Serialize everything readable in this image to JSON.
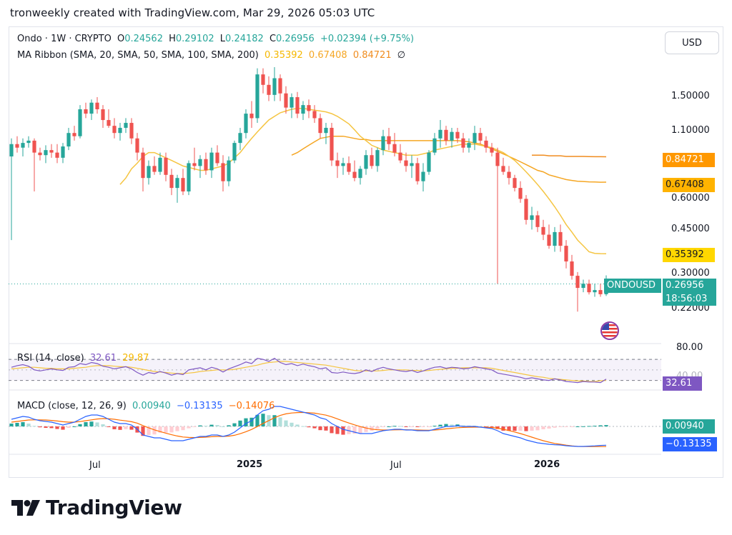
{
  "header": {
    "text": "tronweekly created with TradingView.com, Mar 29, 2026 05:03 UTC"
  },
  "legend": {
    "symbol": "Ondo · 1W · CRYPTO",
    "o_label": "O",
    "o_val": "0.24562",
    "h_label": "H",
    "h_val": "0.29102",
    "l_label": "L",
    "l_val": "0.24182",
    "c_label": "C",
    "c_val": "0.26956",
    "change": "+0.02394 (+9.75%)",
    "ma_title": "MA Ribbon (SMA, 20, SMA, 50, SMA, 100, SMA, 200)",
    "ma_v1": "0.35392",
    "ma_v2": "0.67408",
    "ma_v3": "0.84721",
    "ma_v4": "∅",
    "rsi_title": "RSI (14, close)",
    "rsi_v1": "32.61",
    "rsi_v2": "29.87",
    "macd_title": "MACD (close, 12, 26, 9)",
    "macd_v1": "0.00940",
    "macd_v2": "−0.13135",
    "macd_v3": "−0.14076"
  },
  "currency_button": "USD",
  "price_axis": [
    "1.50000",
    "1.10000",
    "0.60000",
    "0.45000",
    "0.30000",
    "0.22000"
  ],
  "price_tags": {
    "ma100": "0.84721",
    "ma50": "0.67408",
    "ma20": "0.35392",
    "symbol_tag": "ONDOUSD",
    "last": "0.26956",
    "countdown": "18:56:03"
  },
  "rsi_axis": {
    "top": "80.00",
    "hidden": "40.00",
    "tag": "32.61"
  },
  "macd_tags": {
    "hist": "0.00940",
    "macd": "−0.13135"
  },
  "time_axis": [
    "Jul",
    "2025",
    "Jul",
    "2026"
  ],
  "brand": {
    "name": "TradingView",
    "logo": "tradingview-logo-icon"
  },
  "colors": {
    "up": "#26a69a",
    "down": "#ef5350",
    "ma20": "#f5c542",
    "ma50": "#f5a623",
    "ma100": "#f08c1e",
    "rsi": "#7e57c2",
    "macd": "#2962ff",
    "signal": "#ff6d00",
    "rsi_tag": "#7e57c2",
    "ma_tag_yellow": "#ffd700",
    "ma_tag_orange": "#ff9800"
  },
  "chart_data": {
    "type": "candlestick",
    "interval": "1W",
    "y_scale": "log",
    "candles_ohlc": [
      [
        0.85,
        1.0,
        0.4,
        0.95
      ],
      [
        0.95,
        1.02,
        0.88,
        0.92
      ],
      [
        0.92,
        1.0,
        0.85,
        0.96
      ],
      [
        0.96,
        1.02,
        0.92,
        0.98
      ],
      [
        0.98,
        1.0,
        0.62,
        0.88
      ],
      [
        0.88,
        0.92,
        0.82,
        0.86
      ],
      [
        0.86,
        0.94,
        0.8,
        0.9
      ],
      [
        0.9,
        0.95,
        0.84,
        0.88
      ],
      [
        0.88,
        0.95,
        0.8,
        0.84
      ],
      [
        0.84,
        0.96,
        0.8,
        0.93
      ],
      [
        0.93,
        1.1,
        0.9,
        1.05
      ],
      [
        1.05,
        1.12,
        0.98,
        1.02
      ],
      [
        1.02,
        1.35,
        1.0,
        1.3
      ],
      [
        1.3,
        1.38,
        1.2,
        1.25
      ],
      [
        1.25,
        1.42,
        1.18,
        1.38
      ],
      [
        1.38,
        1.45,
        1.25,
        1.3
      ],
      [
        1.3,
        1.35,
        1.1,
        1.18
      ],
      [
        1.18,
        1.3,
        1.1,
        1.12
      ],
      [
        1.12,
        1.2,
        1.0,
        1.05
      ],
      [
        1.05,
        1.15,
        0.98,
        1.1
      ],
      [
        1.1,
        1.2,
        1.05,
        1.15
      ],
      [
        1.15,
        1.2,
        0.95,
        1.0
      ],
      [
        1.0,
        1.05,
        0.82,
        0.88
      ],
      [
        0.88,
        0.92,
        0.62,
        0.7
      ],
      [
        0.7,
        0.82,
        0.66,
        0.78
      ],
      [
        0.78,
        0.85,
        0.72,
        0.74
      ],
      [
        0.74,
        0.88,
        0.72,
        0.84
      ],
      [
        0.84,
        0.88,
        0.68,
        0.72
      ],
      [
        0.72,
        0.76,
        0.6,
        0.64
      ],
      [
        0.64,
        0.72,
        0.56,
        0.7
      ],
      [
        0.7,
        0.76,
        0.6,
        0.62
      ],
      [
        0.62,
        0.82,
        0.6,
        0.8
      ],
      [
        0.8,
        0.92,
        0.75,
        0.78
      ],
      [
        0.78,
        0.86,
        0.7,
        0.83
      ],
      [
        0.83,
        0.88,
        0.72,
        0.75
      ],
      [
        0.75,
        0.92,
        0.7,
        0.88
      ],
      [
        0.88,
        0.94,
        0.78,
        0.8
      ],
      [
        0.8,
        0.86,
        0.62,
        0.68
      ],
      [
        0.68,
        0.85,
        0.65,
        0.82
      ],
      [
        0.82,
        0.98,
        0.8,
        0.96
      ],
      [
        0.96,
        1.1,
        0.9,
        1.05
      ],
      [
        1.05,
        1.3,
        1.0,
        1.25
      ],
      [
        1.25,
        1.4,
        1.1,
        1.2
      ],
      [
        1.2,
        1.88,
        1.15,
        1.78
      ],
      [
        1.78,
        1.88,
        1.5,
        1.62
      ],
      [
        1.62,
        1.75,
        1.4,
        1.48
      ],
      [
        1.48,
        1.9,
        1.4,
        1.72
      ],
      [
        1.72,
        1.78,
        1.4,
        1.5
      ],
      [
        1.5,
        1.6,
        1.25,
        1.32
      ],
      [
        1.32,
        1.5,
        1.2,
        1.45
      ],
      [
        1.45,
        1.52,
        1.2,
        1.25
      ],
      [
        1.25,
        1.4,
        1.18,
        1.35
      ],
      [
        1.35,
        1.42,
        1.2,
        1.28
      ],
      [
        1.28,
        1.35,
        1.15,
        1.2
      ],
      [
        1.2,
        1.25,
        1.0,
        1.05
      ],
      [
        1.05,
        1.15,
        0.95,
        1.1
      ],
      [
        1.1,
        1.15,
        0.78,
        0.82
      ],
      [
        0.82,
        0.88,
        0.7,
        0.78
      ],
      [
        0.78,
        0.84,
        0.72,
        0.8
      ],
      [
        0.8,
        0.85,
        0.72,
        0.74
      ],
      [
        0.74,
        0.82,
        0.68,
        0.7
      ],
      [
        0.7,
        0.78,
        0.66,
        0.76
      ],
      [
        0.76,
        0.9,
        0.72,
        0.86
      ],
      [
        0.86,
        0.92,
        0.76,
        0.78
      ],
      [
        0.78,
        0.92,
        0.74,
        0.9
      ],
      [
        0.9,
        1.08,
        0.86,
        1.02
      ],
      [
        1.02,
        1.1,
        0.9,
        0.95
      ],
      [
        0.95,
        1.05,
        0.85,
        0.88
      ],
      [
        0.88,
        0.95,
        0.8,
        0.82
      ],
      [
        0.82,
        0.88,
        0.74,
        0.78
      ],
      [
        0.78,
        0.86,
        0.7,
        0.8
      ],
      [
        0.8,
        0.84,
        0.66,
        0.68
      ],
      [
        0.68,
        0.8,
        0.62,
        0.74
      ],
      [
        0.74,
        0.9,
        0.72,
        0.88
      ],
      [
        0.88,
        1.05,
        0.86,
        1.0
      ],
      [
        1.0,
        1.18,
        0.92,
        1.08
      ],
      [
        1.08,
        1.12,
        0.94,
        0.98
      ],
      [
        0.98,
        1.1,
        0.92,
        1.06
      ],
      [
        1.06,
        1.1,
        0.96,
        1.0
      ],
      [
        1.0,
        1.05,
        0.88,
        0.92
      ],
      [
        0.92,
        1.0,
        0.88,
        0.96
      ],
      [
        0.96,
        1.12,
        0.9,
        1.05
      ],
      [
        1.05,
        1.1,
        0.95,
        0.98
      ],
      [
        0.98,
        1.02,
        0.88,
        0.92
      ],
      [
        0.92,
        0.96,
        0.85,
        0.88
      ],
      [
        0.88,
        0.92,
        0.27,
        0.78
      ],
      [
        0.78,
        0.84,
        0.72,
        0.74
      ],
      [
        0.74,
        0.78,
        0.66,
        0.7
      ],
      [
        0.7,
        0.72,
        0.62,
        0.64
      ],
      [
        0.64,
        0.68,
        0.56,
        0.58
      ],
      [
        0.58,
        0.6,
        0.46,
        0.48
      ],
      [
        0.48,
        0.54,
        0.44,
        0.5
      ],
      [
        0.5,
        0.52,
        0.43,
        0.45
      ],
      [
        0.45,
        0.48,
        0.4,
        0.42
      ],
      [
        0.42,
        0.46,
        0.37,
        0.38
      ],
      [
        0.38,
        0.45,
        0.36,
        0.43
      ],
      [
        0.43,
        0.46,
        0.36,
        0.38
      ],
      [
        0.38,
        0.4,
        0.31,
        0.33
      ],
      [
        0.33,
        0.35,
        0.28,
        0.29
      ],
      [
        0.29,
        0.3,
        0.21,
        0.26
      ],
      [
        0.26,
        0.28,
        0.25,
        0.27
      ],
      [
        0.27,
        0.28,
        0.245,
        0.25
      ],
      [
        0.25,
        0.27,
        0.24,
        0.255
      ],
      [
        0.255,
        0.27,
        0.24,
        0.2456
      ],
      [
        0.24562,
        0.29102,
        0.24182,
        0.26956
      ]
    ],
    "ma_20": [
      null,
      null,
      null,
      null,
      null,
      null,
      null,
      null,
      null,
      null,
      null,
      null,
      null,
      null,
      null,
      null,
      null,
      null,
      null,
      0.66,
      0.7,
      0.76,
      0.8,
      0.85,
      0.88,
      0.88,
      0.86,
      0.84,
      0.82,
      0.8,
      0.78,
      0.77,
      0.76,
      0.75,
      0.75,
      0.76,
      0.77,
      0.78,
      0.8,
      0.84,
      0.88,
      0.94,
      1.0,
      1.06,
      1.12,
      1.18,
      1.22,
      1.26,
      1.28,
      1.3,
      1.31,
      1.31,
      1.3,
      1.29,
      1.28,
      1.27,
      1.25,
      1.22,
      1.18,
      1.14,
      1.08,
      1.02,
      0.98,
      0.94,
      0.92,
      0.9,
      0.89,
      0.88,
      0.87,
      0.86,
      0.86,
      0.86,
      0.87,
      0.88,
      0.9,
      0.91,
      0.92,
      0.93,
      0.94,
      0.95,
      0.95,
      0.95,
      0.94,
      0.93,
      0.92,
      0.9,
      0.88,
      0.85,
      0.82,
      0.78,
      0.74,
      0.7,
      0.66,
      0.62,
      0.58,
      0.54,
      0.5,
      0.46,
      0.43,
      0.4,
      0.38,
      0.36,
      0.355,
      0.354,
      0.3539
    ],
    "ma_50": [
      null,
      null,
      null,
      null,
      null,
      null,
      null,
      null,
      null,
      null,
      null,
      null,
      null,
      null,
      null,
      null,
      null,
      null,
      null,
      null,
      null,
      null,
      null,
      null,
      null,
      null,
      null,
      null,
      null,
      null,
      null,
      null,
      null,
      null,
      null,
      null,
      null,
      null,
      null,
      null,
      null,
      null,
      null,
      null,
      null,
      null,
      null,
      null,
      null,
      0.86,
      0.88,
      0.91,
      0.94,
      0.97,
      1.0,
      1.01,
      1.02,
      1.02,
      1.02,
      1.01,
      1.0,
      0.99,
      0.99,
      0.98,
      0.98,
      0.98,
      0.98,
      0.98,
      0.98,
      0.98,
      0.98,
      0.98,
      0.98,
      0.98,
      0.98,
      0.98,
      0.98,
      0.98,
      0.98,
      0.975,
      0.97,
      0.96,
      0.95,
      0.93,
      0.91,
      0.89,
      0.87,
      0.85,
      0.83,
      0.81,
      0.79,
      0.77,
      0.75,
      0.74,
      0.72,
      0.71,
      0.7,
      0.69,
      0.685,
      0.68,
      0.678,
      0.676,
      0.675,
      0.674,
      0.67408
    ],
    "ma_100": [
      null,
      null,
      null,
      null,
      null,
      null,
      null,
      null,
      null,
      null,
      null,
      null,
      null,
      null,
      null,
      null,
      null,
      null,
      null,
      null,
      null,
      null,
      null,
      null,
      null,
      null,
      null,
      null,
      null,
      null,
      null,
      null,
      null,
      null,
      null,
      null,
      null,
      null,
      null,
      null,
      null,
      null,
      null,
      null,
      null,
      null,
      null,
      null,
      null,
      null,
      null,
      null,
      null,
      null,
      null,
      null,
      null,
      null,
      null,
      null,
      null,
      null,
      null,
      null,
      null,
      null,
      null,
      null,
      null,
      null,
      null,
      null,
      null,
      null,
      null,
      null,
      null,
      null,
      null,
      null,
      null,
      null,
      null,
      null,
      null,
      null,
      null,
      null,
      null,
      null,
      null,
      0.86,
      0.86,
      0.86,
      0.855,
      0.855,
      0.855,
      0.85,
      0.85,
      0.85,
      0.85,
      0.849,
      0.848,
      0.848,
      0.8472
    ],
    "rsi": [
      55,
      58,
      60,
      57,
      50,
      48,
      50,
      52,
      50,
      49,
      55,
      56,
      62,
      60,
      64,
      62,
      57,
      55,
      52,
      54,
      56,
      52,
      45,
      40,
      45,
      43,
      47,
      44,
      40,
      43,
      41,
      50,
      52,
      54,
      50,
      55,
      52,
      46,
      52,
      56,
      60,
      65,
      62,
      72,
      70,
      66,
      72,
      64,
      60,
      62,
      58,
      61,
      58,
      56,
      52,
      54,
      45,
      44,
      46,
      44,
      43,
      45,
      50,
      47,
      52,
      55,
      52,
      50,
      48,
      47,
      49,
      45,
      48,
      52,
      55,
      56,
      53,
      55,
      54,
      52,
      53,
      56,
      54,
      52,
      50,
      44,
      42,
      40,
      38,
      36,
      33,
      35,
      33,
      31,
      30,
      33,
      31,
      28,
      27,
      26,
      28,
      27,
      27,
      26,
      32.61
    ],
    "rsi_signal": [
      52,
      53,
      54,
      55,
      55,
      54,
      53,
      53,
      52,
      52,
      52,
      53,
      54,
      55,
      57,
      58,
      58,
      58,
      57,
      56,
      56,
      55,
      53,
      51,
      49,
      47,
      46,
      45,
      44,
      43,
      43,
      44,
      45,
      47,
      48,
      49,
      50,
      50,
      50,
      51,
      53,
      55,
      57,
      59,
      62,
      64,
      65,
      66,
      66,
      65,
      64,
      63,
      62,
      61,
      60,
      59,
      57,
      55,
      53,
      51,
      49,
      48,
      48,
      48,
      48,
      49,
      50,
      50,
      50,
      50,
      49,
      49,
      48,
      49,
      50,
      51,
      52,
      53,
      53,
      54,
      54,
      54,
      54,
      54,
      53,
      51,
      49,
      47,
      45,
      43,
      41,
      39,
      37,
      36,
      34,
      33,
      32,
      31,
      30,
      29,
      29,
      28,
      28,
      29.5,
      29.87
    ],
    "macd": [
      0.05,
      0.06,
      0.07,
      0.065,
      0.05,
      0.04,
      0.035,
      0.03,
      0.02,
      0.01,
      0.02,
      0.03,
      0.05,
      0.07,
      0.08,
      0.08,
      0.07,
      0.05,
      0.03,
      0.02,
      0.02,
      0.01,
      -0.02,
      -0.06,
      -0.07,
      -0.08,
      -0.08,
      -0.09,
      -0.1,
      -0.1,
      -0.1,
      -0.09,
      -0.08,
      -0.07,
      -0.07,
      -0.06,
      -0.06,
      -0.07,
      -0.06,
      -0.04,
      -0.01,
      0.02,
      0.04,
      0.08,
      0.11,
      0.12,
      0.14,
      0.14,
      0.13,
      0.12,
      0.11,
      0.1,
      0.09,
      0.08,
      0.06,
      0.05,
      0.02,
      0.0,
      -0.02,
      -0.03,
      -0.04,
      -0.05,
      -0.05,
      -0.05,
      -0.04,
      -0.03,
      -0.025,
      -0.02,
      -0.02,
      -0.025,
      -0.025,
      -0.03,
      -0.03,
      -0.03,
      -0.02,
      -0.01,
      0.0,
      0.0,
      0.005,
      0.0,
      0.0,
      0.0,
      -0.005,
      -0.01,
      -0.015,
      -0.03,
      -0.05,
      -0.06,
      -0.07,
      -0.08,
      -0.095,
      -0.105,
      -0.115,
      -0.12,
      -0.125,
      -0.128,
      -0.13,
      -0.135,
      -0.138,
      -0.14,
      -0.14,
      -0.138,
      -0.136,
      -0.133,
      -0.13135
    ],
    "macd_signal": [
      0.03,
      0.035,
      0.04,
      0.045,
      0.046,
      0.046,
      0.045,
      0.042,
      0.038,
      0.033,
      0.03,
      0.03,
      0.034,
      0.04,
      0.046,
      0.052,
      0.055,
      0.054,
      0.05,
      0.044,
      0.039,
      0.033,
      0.023,
      0.006,
      -0.01,
      -0.024,
      -0.036,
      -0.047,
      -0.058,
      -0.067,
      -0.074,
      -0.077,
      -0.078,
      -0.077,
      -0.075,
      -0.072,
      -0.07,
      -0.07,
      -0.068,
      -0.062,
      -0.051,
      -0.037,
      -0.021,
      -0.001,
      0.021,
      0.041,
      0.061,
      0.077,
      0.088,
      0.094,
      0.097,
      0.098,
      0.096,
      0.093,
      0.086,
      0.079,
      0.067,
      0.053,
      0.038,
      0.024,
      0.011,
      -0.001,
      -0.011,
      -0.019,
      -0.023,
      -0.025,
      -0.025,
      -0.024,
      -0.023,
      -0.023,
      -0.024,
      -0.025,
      -0.026,
      -0.027,
      -0.025,
      -0.022,
      -0.017,
      -0.013,
      -0.009,
      -0.007,
      -0.006,
      -0.005,
      -0.005,
      -0.006,
      -0.008,
      -0.012,
      -0.02,
      -0.029,
      -0.039,
      -0.05,
      -0.062,
      -0.075,
      -0.088,
      -0.1,
      -0.11,
      -0.119,
      -0.125,
      -0.131,
      -0.136,
      -0.14,
      -0.141,
      -0.141,
      -0.141,
      -0.1408,
      -0.14076
    ],
    "title": "Ondo · 1W · CRYPTO",
    "y_ticks": [
      1.5,
      1.1,
      0.6,
      0.45,
      0.3,
      0.22
    ],
    "x_ticks": [
      "Jul",
      "2025",
      "Jul",
      "2026"
    ]
  }
}
